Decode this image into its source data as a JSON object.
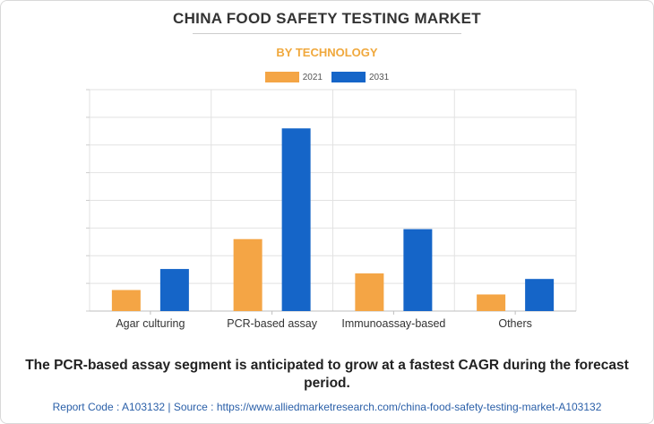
{
  "header": {
    "title": "CHINA FOOD SAFETY TESTING MARKET",
    "subtitle": "BY TECHNOLOGY"
  },
  "chart_data": {
    "type": "bar",
    "categories": [
      "Agar culturing",
      "PCR-based assay",
      "Immunoassay-based",
      "Others"
    ],
    "series": [
      {
        "name": "2021",
        "color": "#f4a545",
        "values": [
          95,
          325,
          170,
          75
        ]
      },
      {
        "name": "2031",
        "color": "#1565c8",
        "values": [
          190,
          825,
          370,
          145
        ]
      }
    ],
    "ylim": [
      0,
      1000
    ],
    "y_gridlines": 8,
    "grid": true,
    "y_tick_labels_shown": false,
    "legend_position": "top-center"
  },
  "footer": {
    "caption": "The PCR-based assay segment is anticipated to grow at a fastest CAGR during the forecast period.",
    "source": "Report Code : A103132  |  Source : https://www.alliedmarketresearch.com/china-food-safety-testing-market-A103132"
  }
}
